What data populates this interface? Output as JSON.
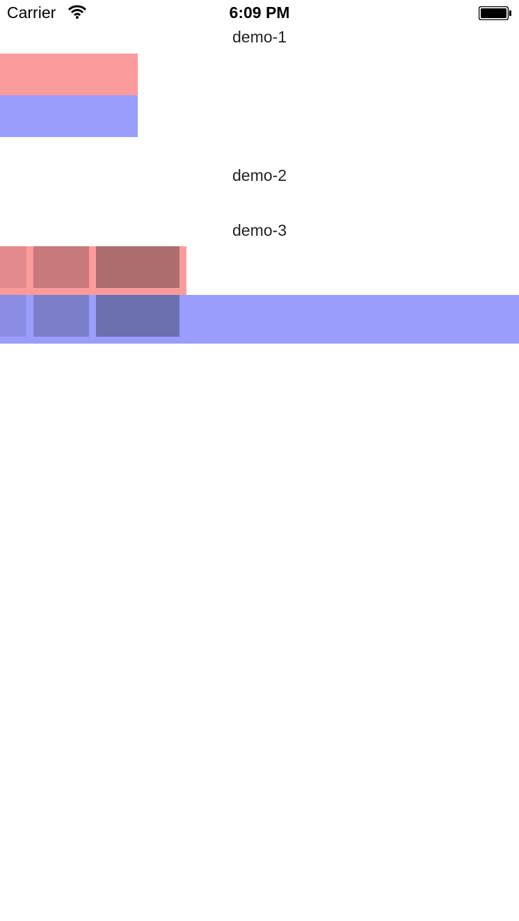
{
  "status_bar": {
    "carrier": "Carrier",
    "time": "6:09 PM",
    "wifi_icon": "wifi-icon",
    "battery_icon": "battery-full-icon"
  },
  "demos": [
    {
      "label": "demo-1"
    },
    {
      "label": "demo-2"
    },
    {
      "label": "demo-3"
    }
  ],
  "colors": {
    "red": "#fc9b9b",
    "blue": "#9b9dfc",
    "red_cell_1": "#e38b8c",
    "red_cell_2": "#c8797b",
    "red_cell_3": "#ad6c6d",
    "blue_cell_1": "#8a8de3",
    "blue_cell_2": "#7b7fc9",
    "blue_cell_3": "#6b70ae"
  }
}
